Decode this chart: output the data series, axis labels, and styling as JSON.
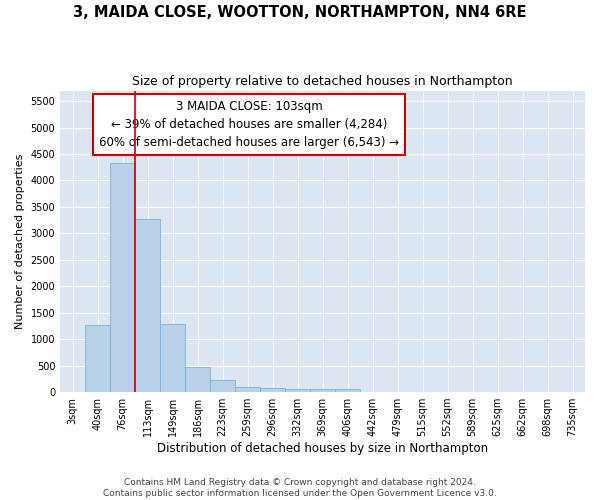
{
  "title": "3, MAIDA CLOSE, WOOTTON, NORTHAMPTON, NN4 6RE",
  "subtitle": "Size of property relative to detached houses in Northampton",
  "xlabel": "Distribution of detached houses by size in Northampton",
  "ylabel": "Number of detached properties",
  "footer_line1": "Contains HM Land Registry data © Crown copyright and database right 2024.",
  "footer_line2": "Contains public sector information licensed under the Open Government Licence v3.0.",
  "annotation_line1": "3 MAIDA CLOSE: 103sqm",
  "annotation_line2": "← 39% of detached houses are smaller (4,284)",
  "annotation_line3": "60% of semi-detached houses are larger (6,543) →",
  "bar_color": "#b8d0e8",
  "bar_edge_color": "#6baed6",
  "marker_color": "#cc0000",
  "background_color": "#dce6f2",
  "grid_color": "#ffffff",
  "categories": [
    "3sqm",
    "40sqm",
    "76sqm",
    "113sqm",
    "149sqm",
    "186sqm",
    "223sqm",
    "259sqm",
    "296sqm",
    "332sqm",
    "369sqm",
    "406sqm",
    "442sqm",
    "479sqm",
    "515sqm",
    "552sqm",
    "589sqm",
    "625sqm",
    "662sqm",
    "698sqm",
    "735sqm"
  ],
  "values": [
    0,
    1270,
    4330,
    3270,
    1280,
    480,
    230,
    95,
    70,
    55,
    50,
    50,
    0,
    0,
    0,
    0,
    0,
    0,
    0,
    0,
    0
  ],
  "redline_x": 2.5,
  "ylim": [
    0,
    5700
  ],
  "yticks": [
    0,
    500,
    1000,
    1500,
    2000,
    2500,
    3000,
    3500,
    4000,
    4500,
    5000,
    5500
  ],
  "title_fontsize": 10.5,
  "subtitle_fontsize": 9,
  "xlabel_fontsize": 8.5,
  "ylabel_fontsize": 8,
  "tick_fontsize": 7,
  "footer_fontsize": 6.5,
  "annotation_fontsize": 8.5
}
